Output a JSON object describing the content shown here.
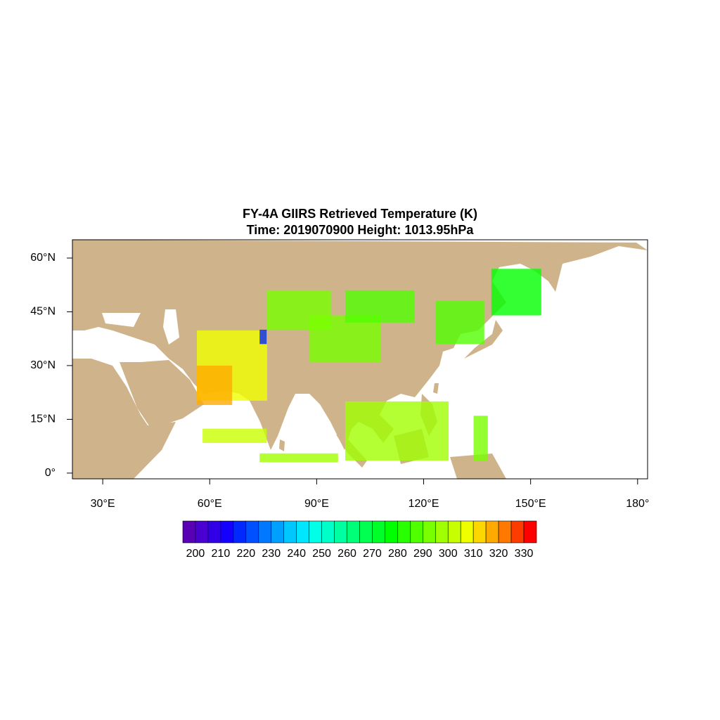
{
  "chart_data": {
    "type": "map",
    "title": "FY-4A GIIRS Retrieved Temperature (K)",
    "subtitle": "Time: 2019070900  Height: 1013.95hPa",
    "xlim": [
      21.5,
      182.8
    ],
    "ylim": [
      -1.6,
      65.1
    ],
    "xticks": [
      {
        "value": 30,
        "label": "30°E"
      },
      {
        "value": 60,
        "label": "60°E"
      },
      {
        "value": 90,
        "label": "90°E"
      },
      {
        "value": 120,
        "label": "120°E"
      },
      {
        "value": 150,
        "label": "150°E"
      },
      {
        "value": 180,
        "label": "180°"
      }
    ],
    "yticks": [
      {
        "value": 0,
        "label": "0°"
      },
      {
        "value": 15,
        "label": "15°N"
      },
      {
        "value": 30,
        "label": "30°N"
      },
      {
        "value": 45,
        "label": "45°N"
      },
      {
        "value": 60,
        "label": "60°N"
      }
    ],
    "land_color": "#cfb48b",
    "colorbar": {
      "clim": [
        195,
        335
      ],
      "ticks": [
        200,
        210,
        220,
        230,
        240,
        250,
        260,
        270,
        280,
        290,
        300,
        310,
        320,
        330
      ],
      "colors": [
        "#5a00b4",
        "#4b00d2",
        "#3200e6",
        "#1400ff",
        "#0028ff",
        "#0050ff",
        "#0078ff",
        "#00a0ff",
        "#00c8ff",
        "#00e6ff",
        "#00ffe6",
        "#00ffc8",
        "#00ffa0",
        "#00ff78",
        "#00ff50",
        "#00ff28",
        "#00ff00",
        "#28ff00",
        "#50ff00",
        "#78ff00",
        "#a0ff00",
        "#c8ff00",
        "#f0ff00",
        "#ffd700",
        "#ffaa00",
        "#ff7800",
        "#ff3c00",
        "#ff0000"
      ]
    },
    "regions": [
      {
        "lon": [
          56.4,
          76.1
        ],
        "lat": [
          20.2,
          39.8
        ],
        "value": 305
      },
      {
        "lon": [
          56.4,
          66.3
        ],
        "lat": [
          19,
          30
        ],
        "value": 315
      },
      {
        "lon": [
          76,
          94
        ],
        "lat": [
          40,
          51
        ],
        "value": 292
      },
      {
        "lon": [
          88,
          108
        ],
        "lat": [
          31,
          44
        ],
        "value": 290
      },
      {
        "lon": [
          98,
          117.5
        ],
        "lat": [
          42,
          51
        ],
        "value": 285
      },
      {
        "lon": [
          123.4,
          137
        ],
        "lat": [
          36,
          48
        ],
        "value": 285
      },
      {
        "lon": [
          139,
          153
        ],
        "lat": [
          44,
          57
        ],
        "value": 275
      },
      {
        "lon": [
          58,
          76
        ],
        "lat": [
          8.4,
          12.4
        ],
        "value": 300
      },
      {
        "lon": [
          74,
          96
        ],
        "lat": [
          3,
          5.5
        ],
        "value": 298
      },
      {
        "lon": [
          98,
          127
        ],
        "lat": [
          3.5,
          20
        ],
        "value": 295
      },
      {
        "lon": [
          134,
          138
        ],
        "lat": [
          3.5,
          16
        ],
        "value": 292
      },
      {
        "lon": [
          74,
          76
        ],
        "lat": [
          36,
          40
        ],
        "value": 215
      }
    ]
  }
}
